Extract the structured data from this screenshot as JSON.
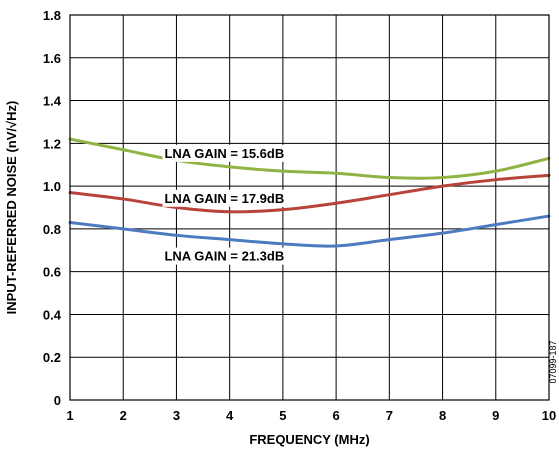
{
  "chart_data": {
    "type": "line",
    "xlabel": "FREQUENCY (MHz)",
    "ylabel": "INPUT-REFERRED NOISE (nV/√Hz)",
    "xlim": [
      1,
      10
    ],
    "ylim": [
      0,
      1.8
    ],
    "grid": true,
    "x_ticks": [
      "1",
      "2",
      "3",
      "4",
      "5",
      "6",
      "7",
      "8",
      "9",
      "10"
    ],
    "y_ticks": [
      "0",
      "0.2",
      "0.4",
      "0.6",
      "0.8",
      "1.0",
      "1.2",
      "1.4",
      "1.6",
      "1.8"
    ],
    "x": [
      1,
      2,
      3,
      4,
      5,
      6,
      7,
      8,
      9,
      10
    ],
    "series": [
      {
        "name": "LNA GAIN = 15.6dB",
        "color": "#8fb443",
        "values": [
          1.22,
          1.17,
          1.12,
          1.09,
          1.07,
          1.06,
          1.04,
          1.04,
          1.07,
          1.13
        ]
      },
      {
        "name": "LNA GAIN = 17.9dB",
        "color": "#b8433a",
        "values": [
          0.97,
          0.94,
          0.9,
          0.88,
          0.89,
          0.92,
          0.96,
          1.0,
          1.03,
          1.05
        ]
      },
      {
        "name": "LNA GAIN = 21.3dB",
        "color": "#4d7bbf",
        "values": [
          0.83,
          0.8,
          0.77,
          0.75,
          0.73,
          0.72,
          0.75,
          0.78,
          0.82,
          0.86
        ]
      }
    ],
    "figure_id": "07099-187"
  }
}
